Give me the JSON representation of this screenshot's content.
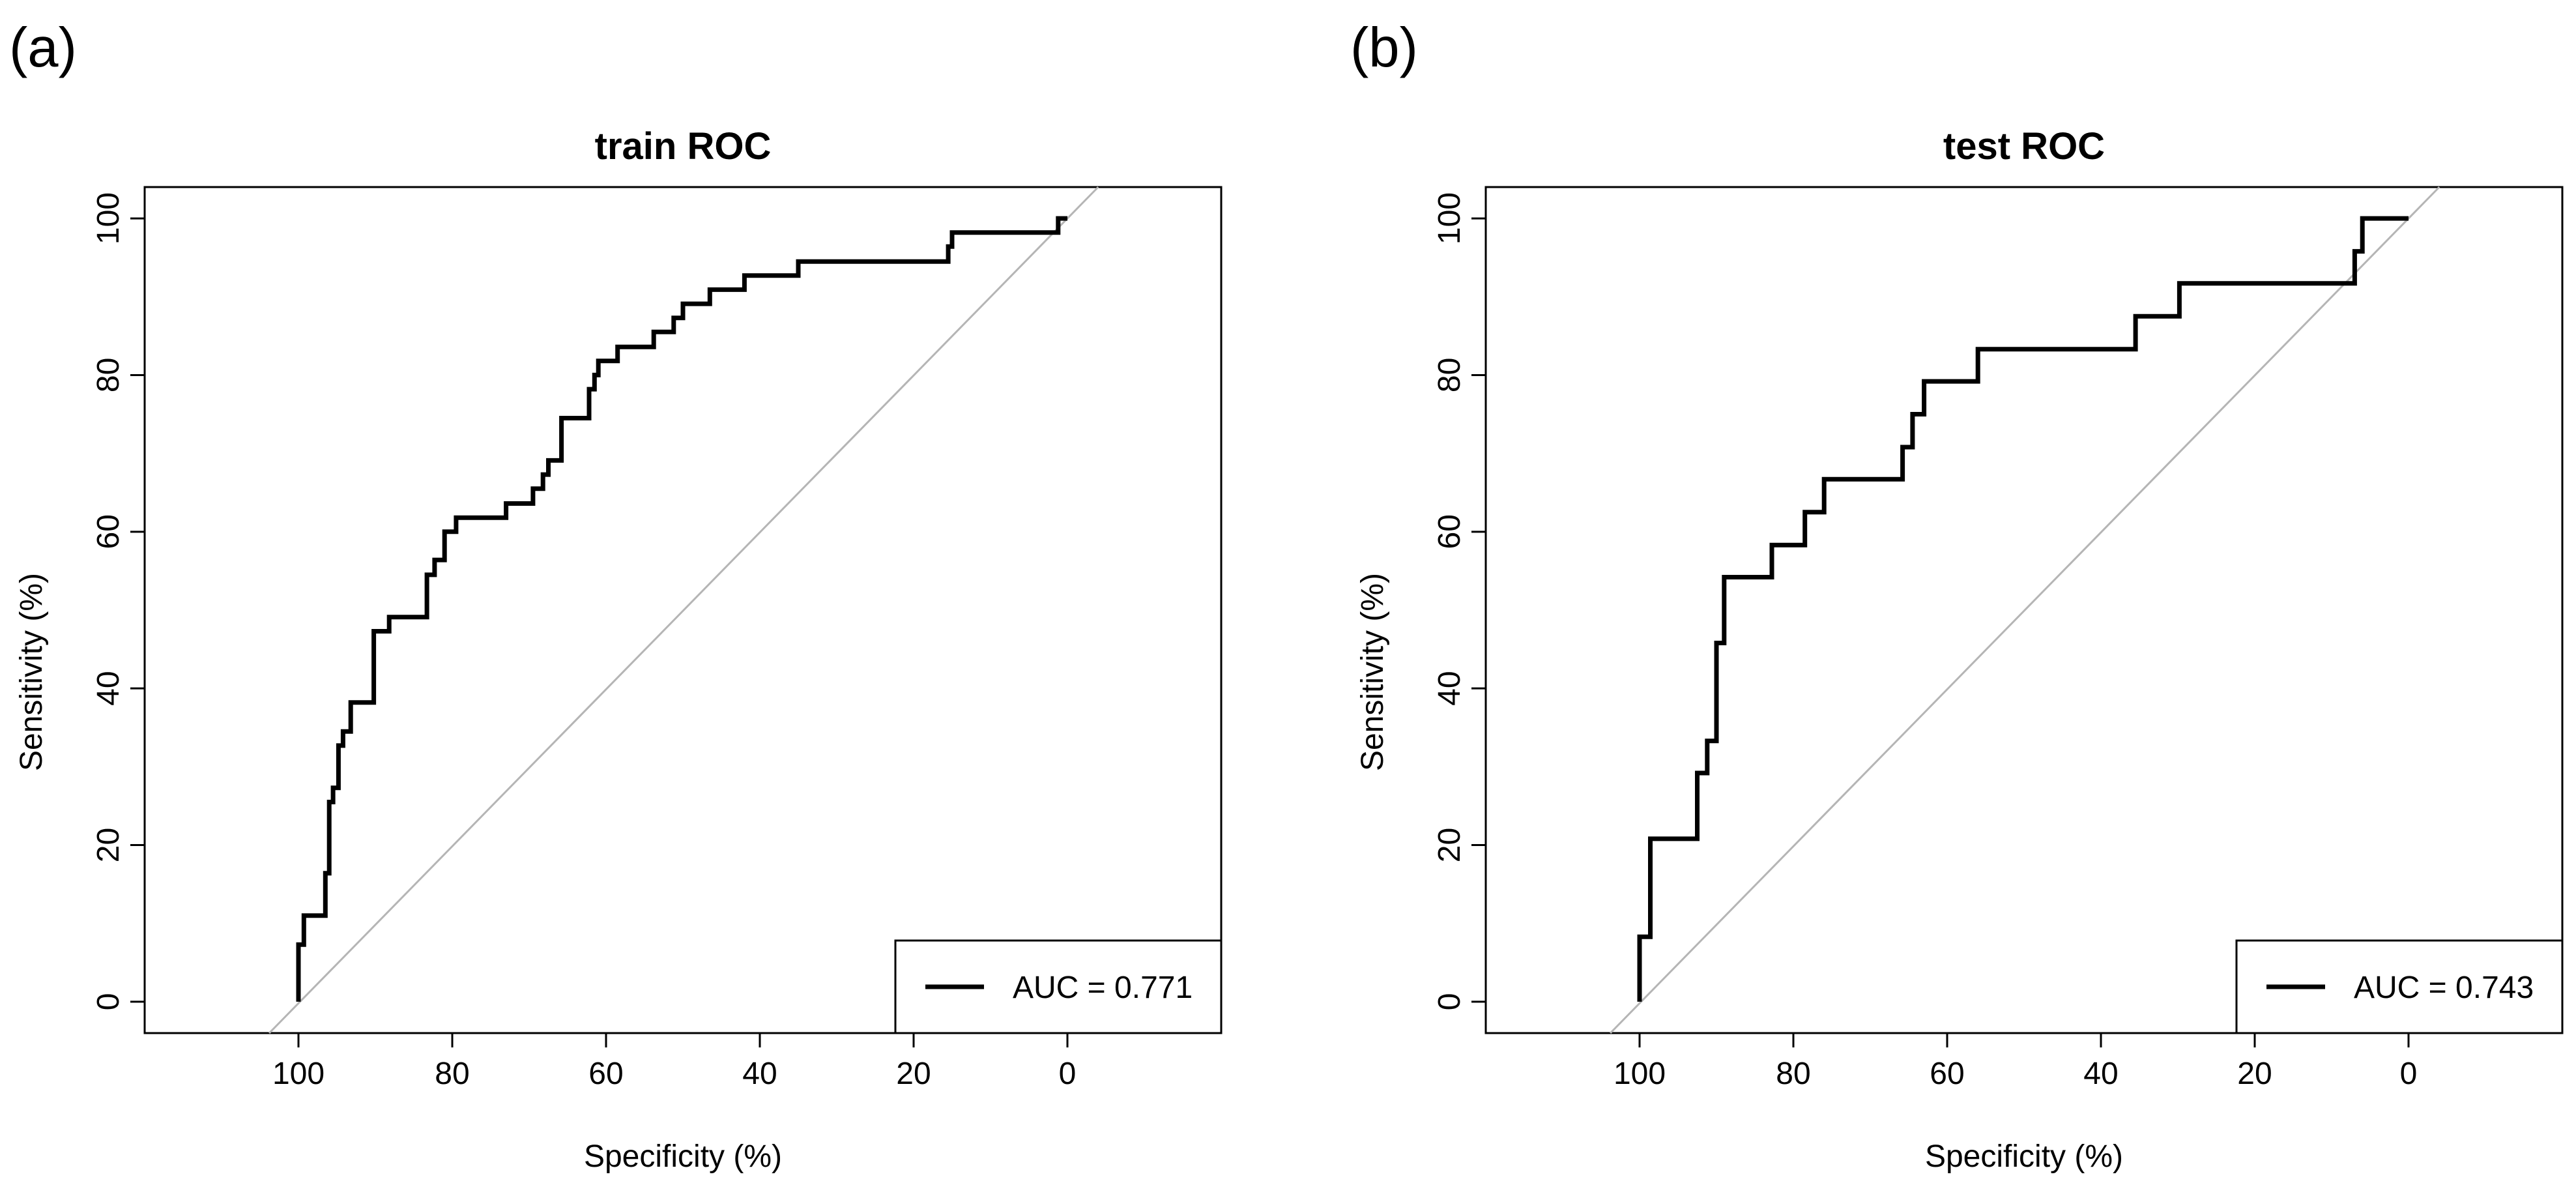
{
  "panels": [
    {
      "tag": "(a)"
    },
    {
      "tag": "(b)"
    }
  ],
  "chart_data": [
    {
      "type": "line",
      "title": "train ROC",
      "xlabel": "Specificity (%)",
      "ylabel": "Sensitivity (%)",
      "xlim": [
        120,
        -20
      ],
      "ylim": [
        -4,
        104
      ],
      "x_reversed": true,
      "x_ticks": [
        "100",
        "80",
        "60",
        "40",
        "20",
        "0"
      ],
      "y_ticks": [
        "0",
        "20",
        "40",
        "60",
        "80",
        "100"
      ],
      "reference_line": true,
      "legend": {
        "position": "bottom-right",
        "label": "AUC = 0.771"
      },
      "series": [
        {
          "auc": 0.771,
          "points": [
            [
              100,
              0
            ],
            [
              100,
              7.3
            ],
            [
              99.3,
              7.3
            ],
            [
              99.3,
              11
            ],
            [
              96.5,
              11
            ],
            [
              96.5,
              16.4
            ],
            [
              96,
              16.4
            ],
            [
              96,
              25.5
            ],
            [
              95.5,
              25.5
            ],
            [
              95.5,
              27.3
            ],
            [
              94.8,
              27.3
            ],
            [
              94.8,
              32.7
            ],
            [
              94.2,
              32.7
            ],
            [
              94.2,
              34.5
            ],
            [
              93.2,
              34.5
            ],
            [
              93.2,
              38.2
            ],
            [
              90.2,
              38.2
            ],
            [
              90.2,
              47.3
            ],
            [
              88.2,
              47.3
            ],
            [
              88.2,
              49.1
            ],
            [
              83.3,
              49.1
            ],
            [
              83.3,
              54.5
            ],
            [
              82.3,
              54.5
            ],
            [
              82.3,
              56.4
            ],
            [
              81,
              56.4
            ],
            [
              81,
              60
            ],
            [
              79.5,
              60
            ],
            [
              79.5,
              61.8
            ],
            [
              73,
              61.8
            ],
            [
              73,
              63.6
            ],
            [
              69.5,
              63.6
            ],
            [
              69.5,
              65.5
            ],
            [
              68.2,
              65.5
            ],
            [
              68.2,
              67.3
            ],
            [
              67.5,
              67.3
            ],
            [
              67.5,
              69.1
            ],
            [
              65.8,
              69.1
            ],
            [
              65.8,
              74.5
            ],
            [
              62.2,
              74.5
            ],
            [
              62.2,
              78.2
            ],
            [
              61.5,
              78.2
            ],
            [
              61.5,
              80
            ],
            [
              61,
              80
            ],
            [
              61,
              81.8
            ],
            [
              58.5,
              81.8
            ],
            [
              58.5,
              83.6
            ],
            [
              53.8,
              83.6
            ],
            [
              53.8,
              85.5
            ],
            [
              51.2,
              85.5
            ],
            [
              51.2,
              87.3
            ],
            [
              50,
              87.3
            ],
            [
              50,
              89.1
            ],
            [
              46.5,
              89.1
            ],
            [
              46.5,
              90.9
            ],
            [
              42,
              90.9
            ],
            [
              42,
              92.7
            ],
            [
              35,
              92.7
            ],
            [
              35,
              94.5
            ],
            [
              15.5,
              94.5
            ],
            [
              15.5,
              96.4
            ],
            [
              15,
              96.4
            ],
            [
              15,
              98.2
            ],
            [
              1.2,
              98.2
            ],
            [
              1.2,
              100
            ],
            [
              0,
              100
            ]
          ]
        }
      ]
    },
    {
      "type": "line",
      "title": "test ROC",
      "xlabel": "Specificity (%)",
      "ylabel": "Sensitivity (%)",
      "xlim": [
        120,
        -20
      ],
      "ylim": [
        -4,
        104
      ],
      "x_reversed": true,
      "x_ticks": [
        "100",
        "80",
        "60",
        "40",
        "20",
        "0"
      ],
      "y_ticks": [
        "0",
        "20",
        "40",
        "60",
        "80",
        "100"
      ],
      "reference_line": true,
      "legend": {
        "position": "bottom-right",
        "label": "AUC = 0.743"
      },
      "series": [
        {
          "auc": 0.743,
          "points": [
            [
              100,
              0
            ],
            [
              100,
              8.3
            ],
            [
              98.6,
              8.3
            ],
            [
              98.6,
              20.8
            ],
            [
              92.5,
              20.8
            ],
            [
              92.5,
              29.2
            ],
            [
              91.2,
              29.2
            ],
            [
              91.2,
              33.3
            ],
            [
              90,
              33.3
            ],
            [
              90,
              45.8
            ],
            [
              89,
              45.8
            ],
            [
              89,
              54.2
            ],
            [
              82.8,
              54.2
            ],
            [
              82.8,
              58.3
            ],
            [
              78.5,
              58.3
            ],
            [
              78.5,
              62.5
            ],
            [
              76,
              62.5
            ],
            [
              76,
              66.7
            ],
            [
              65.8,
              66.7
            ],
            [
              65.8,
              70.8
            ],
            [
              64.5,
              70.8
            ],
            [
              64.5,
              75
            ],
            [
              63,
              75
            ],
            [
              63,
              79.2
            ],
            [
              56,
              79.2
            ],
            [
              56,
              83.3
            ],
            [
              35.5,
              83.3
            ],
            [
              35.5,
              87.5
            ],
            [
              29.8,
              87.5
            ],
            [
              29.8,
              91.7
            ],
            [
              7,
              91.7
            ],
            [
              7,
              95.8
            ],
            [
              6,
              95.8
            ],
            [
              6,
              100
            ],
            [
              0,
              100
            ]
          ]
        }
      ]
    }
  ]
}
